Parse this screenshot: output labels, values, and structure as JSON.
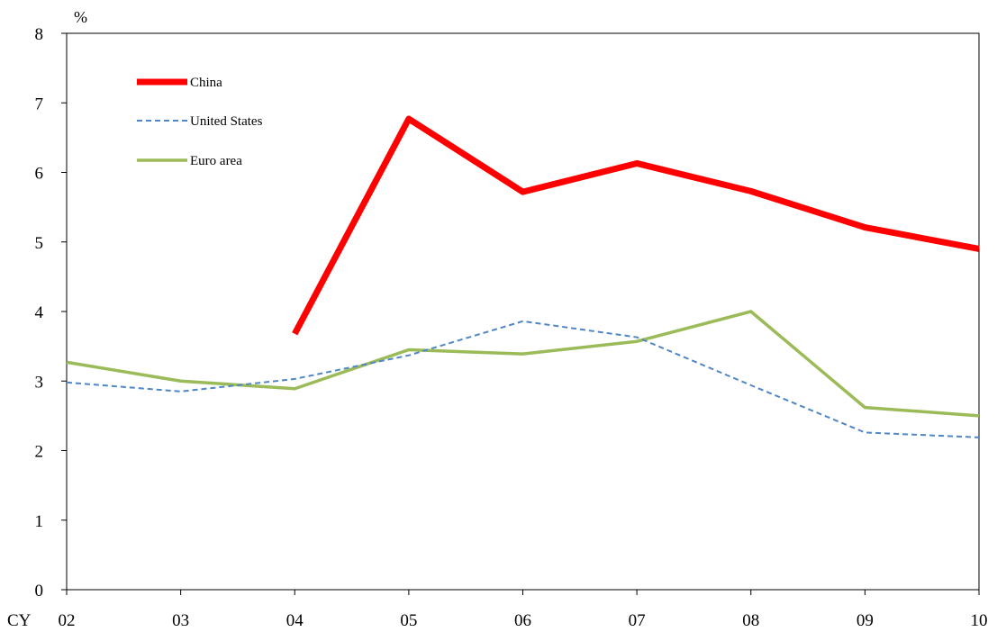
{
  "chart_data": {
    "type": "line",
    "unit_label": "%",
    "x_prefix_label": "CY",
    "categories": [
      "02",
      "03",
      "04",
      "05",
      "06",
      "07",
      "08",
      "09",
      "10"
    ],
    "ylim": [
      0,
      8
    ],
    "yticks": [
      "0",
      "1",
      "2",
      "3",
      "4",
      "5",
      "6",
      "7",
      "8"
    ],
    "grid": false,
    "legend_position": "top-left",
    "series": [
      {
        "name": "China",
        "color": "#ff0000",
        "style": "solid-thick",
        "values": [
          null,
          null,
          3.68,
          6.77,
          5.72,
          6.13,
          5.73,
          5.21,
          4.9
        ]
      },
      {
        "name": "United States",
        "color": "#4f86c6",
        "style": "dashed",
        "values": [
          2.98,
          2.85,
          3.03,
          3.37,
          3.86,
          3.63,
          2.94,
          2.26,
          2.19
        ]
      },
      {
        "name": "Euro area",
        "color": "#9bbb59",
        "style": "solid",
        "values": [
          3.27,
          3.0,
          2.89,
          3.45,
          3.39,
          3.57,
          4.0,
          2.62,
          2.5
        ]
      }
    ]
  }
}
